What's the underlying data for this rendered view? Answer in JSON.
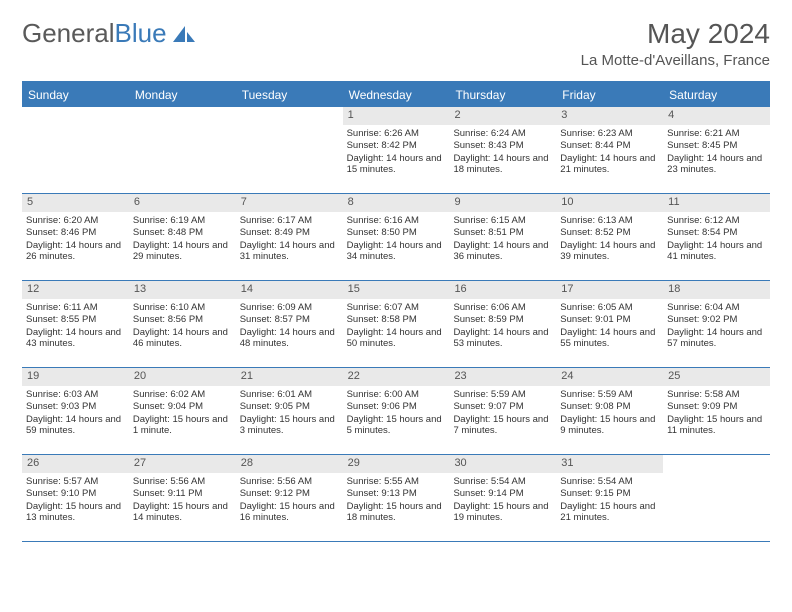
{
  "brand": {
    "part1": "General",
    "part2": "Blue"
  },
  "title": "May 2024",
  "location": "La Motte-d'Aveillans, France",
  "colors": {
    "accent": "#3a7ab8",
    "header_bg": "#3a7ab8",
    "header_text": "#ffffff",
    "daynum_bg": "#e9e9e9",
    "text": "#333333",
    "background": "#ffffff"
  },
  "day_names": [
    "Sunday",
    "Monday",
    "Tuesday",
    "Wednesday",
    "Thursday",
    "Friday",
    "Saturday"
  ],
  "weeks": [
    [
      null,
      null,
      null,
      {
        "n": "1",
        "sr": "6:26 AM",
        "ss": "8:42 PM",
        "dl": "14 hours and 15 minutes."
      },
      {
        "n": "2",
        "sr": "6:24 AM",
        "ss": "8:43 PM",
        "dl": "14 hours and 18 minutes."
      },
      {
        "n": "3",
        "sr": "6:23 AM",
        "ss": "8:44 PM",
        "dl": "14 hours and 21 minutes."
      },
      {
        "n": "4",
        "sr": "6:21 AM",
        "ss": "8:45 PM",
        "dl": "14 hours and 23 minutes."
      }
    ],
    [
      {
        "n": "5",
        "sr": "6:20 AM",
        "ss": "8:46 PM",
        "dl": "14 hours and 26 minutes."
      },
      {
        "n": "6",
        "sr": "6:19 AM",
        "ss": "8:48 PM",
        "dl": "14 hours and 29 minutes."
      },
      {
        "n": "7",
        "sr": "6:17 AM",
        "ss": "8:49 PM",
        "dl": "14 hours and 31 minutes."
      },
      {
        "n": "8",
        "sr": "6:16 AM",
        "ss": "8:50 PM",
        "dl": "14 hours and 34 minutes."
      },
      {
        "n": "9",
        "sr": "6:15 AM",
        "ss": "8:51 PM",
        "dl": "14 hours and 36 minutes."
      },
      {
        "n": "10",
        "sr": "6:13 AM",
        "ss": "8:52 PM",
        "dl": "14 hours and 39 minutes."
      },
      {
        "n": "11",
        "sr": "6:12 AM",
        "ss": "8:54 PM",
        "dl": "14 hours and 41 minutes."
      }
    ],
    [
      {
        "n": "12",
        "sr": "6:11 AM",
        "ss": "8:55 PM",
        "dl": "14 hours and 43 minutes."
      },
      {
        "n": "13",
        "sr": "6:10 AM",
        "ss": "8:56 PM",
        "dl": "14 hours and 46 minutes."
      },
      {
        "n": "14",
        "sr": "6:09 AM",
        "ss": "8:57 PM",
        "dl": "14 hours and 48 minutes."
      },
      {
        "n": "15",
        "sr": "6:07 AM",
        "ss": "8:58 PM",
        "dl": "14 hours and 50 minutes."
      },
      {
        "n": "16",
        "sr": "6:06 AM",
        "ss": "8:59 PM",
        "dl": "14 hours and 53 minutes."
      },
      {
        "n": "17",
        "sr": "6:05 AM",
        "ss": "9:01 PM",
        "dl": "14 hours and 55 minutes."
      },
      {
        "n": "18",
        "sr": "6:04 AM",
        "ss": "9:02 PM",
        "dl": "14 hours and 57 minutes."
      }
    ],
    [
      {
        "n": "19",
        "sr": "6:03 AM",
        "ss": "9:03 PM",
        "dl": "14 hours and 59 minutes."
      },
      {
        "n": "20",
        "sr": "6:02 AM",
        "ss": "9:04 PM",
        "dl": "15 hours and 1 minute."
      },
      {
        "n": "21",
        "sr": "6:01 AM",
        "ss": "9:05 PM",
        "dl": "15 hours and 3 minutes."
      },
      {
        "n": "22",
        "sr": "6:00 AM",
        "ss": "9:06 PM",
        "dl": "15 hours and 5 minutes."
      },
      {
        "n": "23",
        "sr": "5:59 AM",
        "ss": "9:07 PM",
        "dl": "15 hours and 7 minutes."
      },
      {
        "n": "24",
        "sr": "5:59 AM",
        "ss": "9:08 PM",
        "dl": "15 hours and 9 minutes."
      },
      {
        "n": "25",
        "sr": "5:58 AM",
        "ss": "9:09 PM",
        "dl": "15 hours and 11 minutes."
      }
    ],
    [
      {
        "n": "26",
        "sr": "5:57 AM",
        "ss": "9:10 PM",
        "dl": "15 hours and 13 minutes."
      },
      {
        "n": "27",
        "sr": "5:56 AM",
        "ss": "9:11 PM",
        "dl": "15 hours and 14 minutes."
      },
      {
        "n": "28",
        "sr": "5:56 AM",
        "ss": "9:12 PM",
        "dl": "15 hours and 16 minutes."
      },
      {
        "n": "29",
        "sr": "5:55 AM",
        "ss": "9:13 PM",
        "dl": "15 hours and 18 minutes."
      },
      {
        "n": "30",
        "sr": "5:54 AM",
        "ss": "9:14 PM",
        "dl": "15 hours and 19 minutes."
      },
      {
        "n": "31",
        "sr": "5:54 AM",
        "ss": "9:15 PM",
        "dl": "15 hours and 21 minutes."
      },
      null
    ]
  ],
  "labels": {
    "sunrise": "Sunrise:",
    "sunset": "Sunset:",
    "daylight": "Daylight:"
  }
}
